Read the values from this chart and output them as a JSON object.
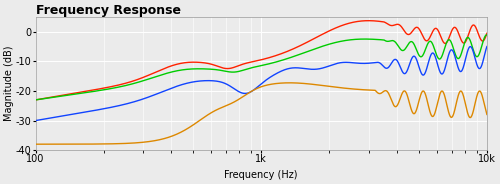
{
  "title": "Frequency Response",
  "xlabel": "Frequency (Hz)",
  "ylabel": "Magnitude (dB)",
  "xlim": [
    100,
    10000
  ],
  "ylim": [
    -40,
    5
  ],
  "yticks": [
    0,
    -10,
    -20,
    -30,
    -40
  ],
  "colors": [
    "#ff2200",
    "#00cc00",
    "#1144ff",
    "#dd8800"
  ],
  "background_color": "#ebebeb",
  "grid_color": "#ffffff",
  "title_fontsize": 9,
  "axis_fontsize": 7
}
